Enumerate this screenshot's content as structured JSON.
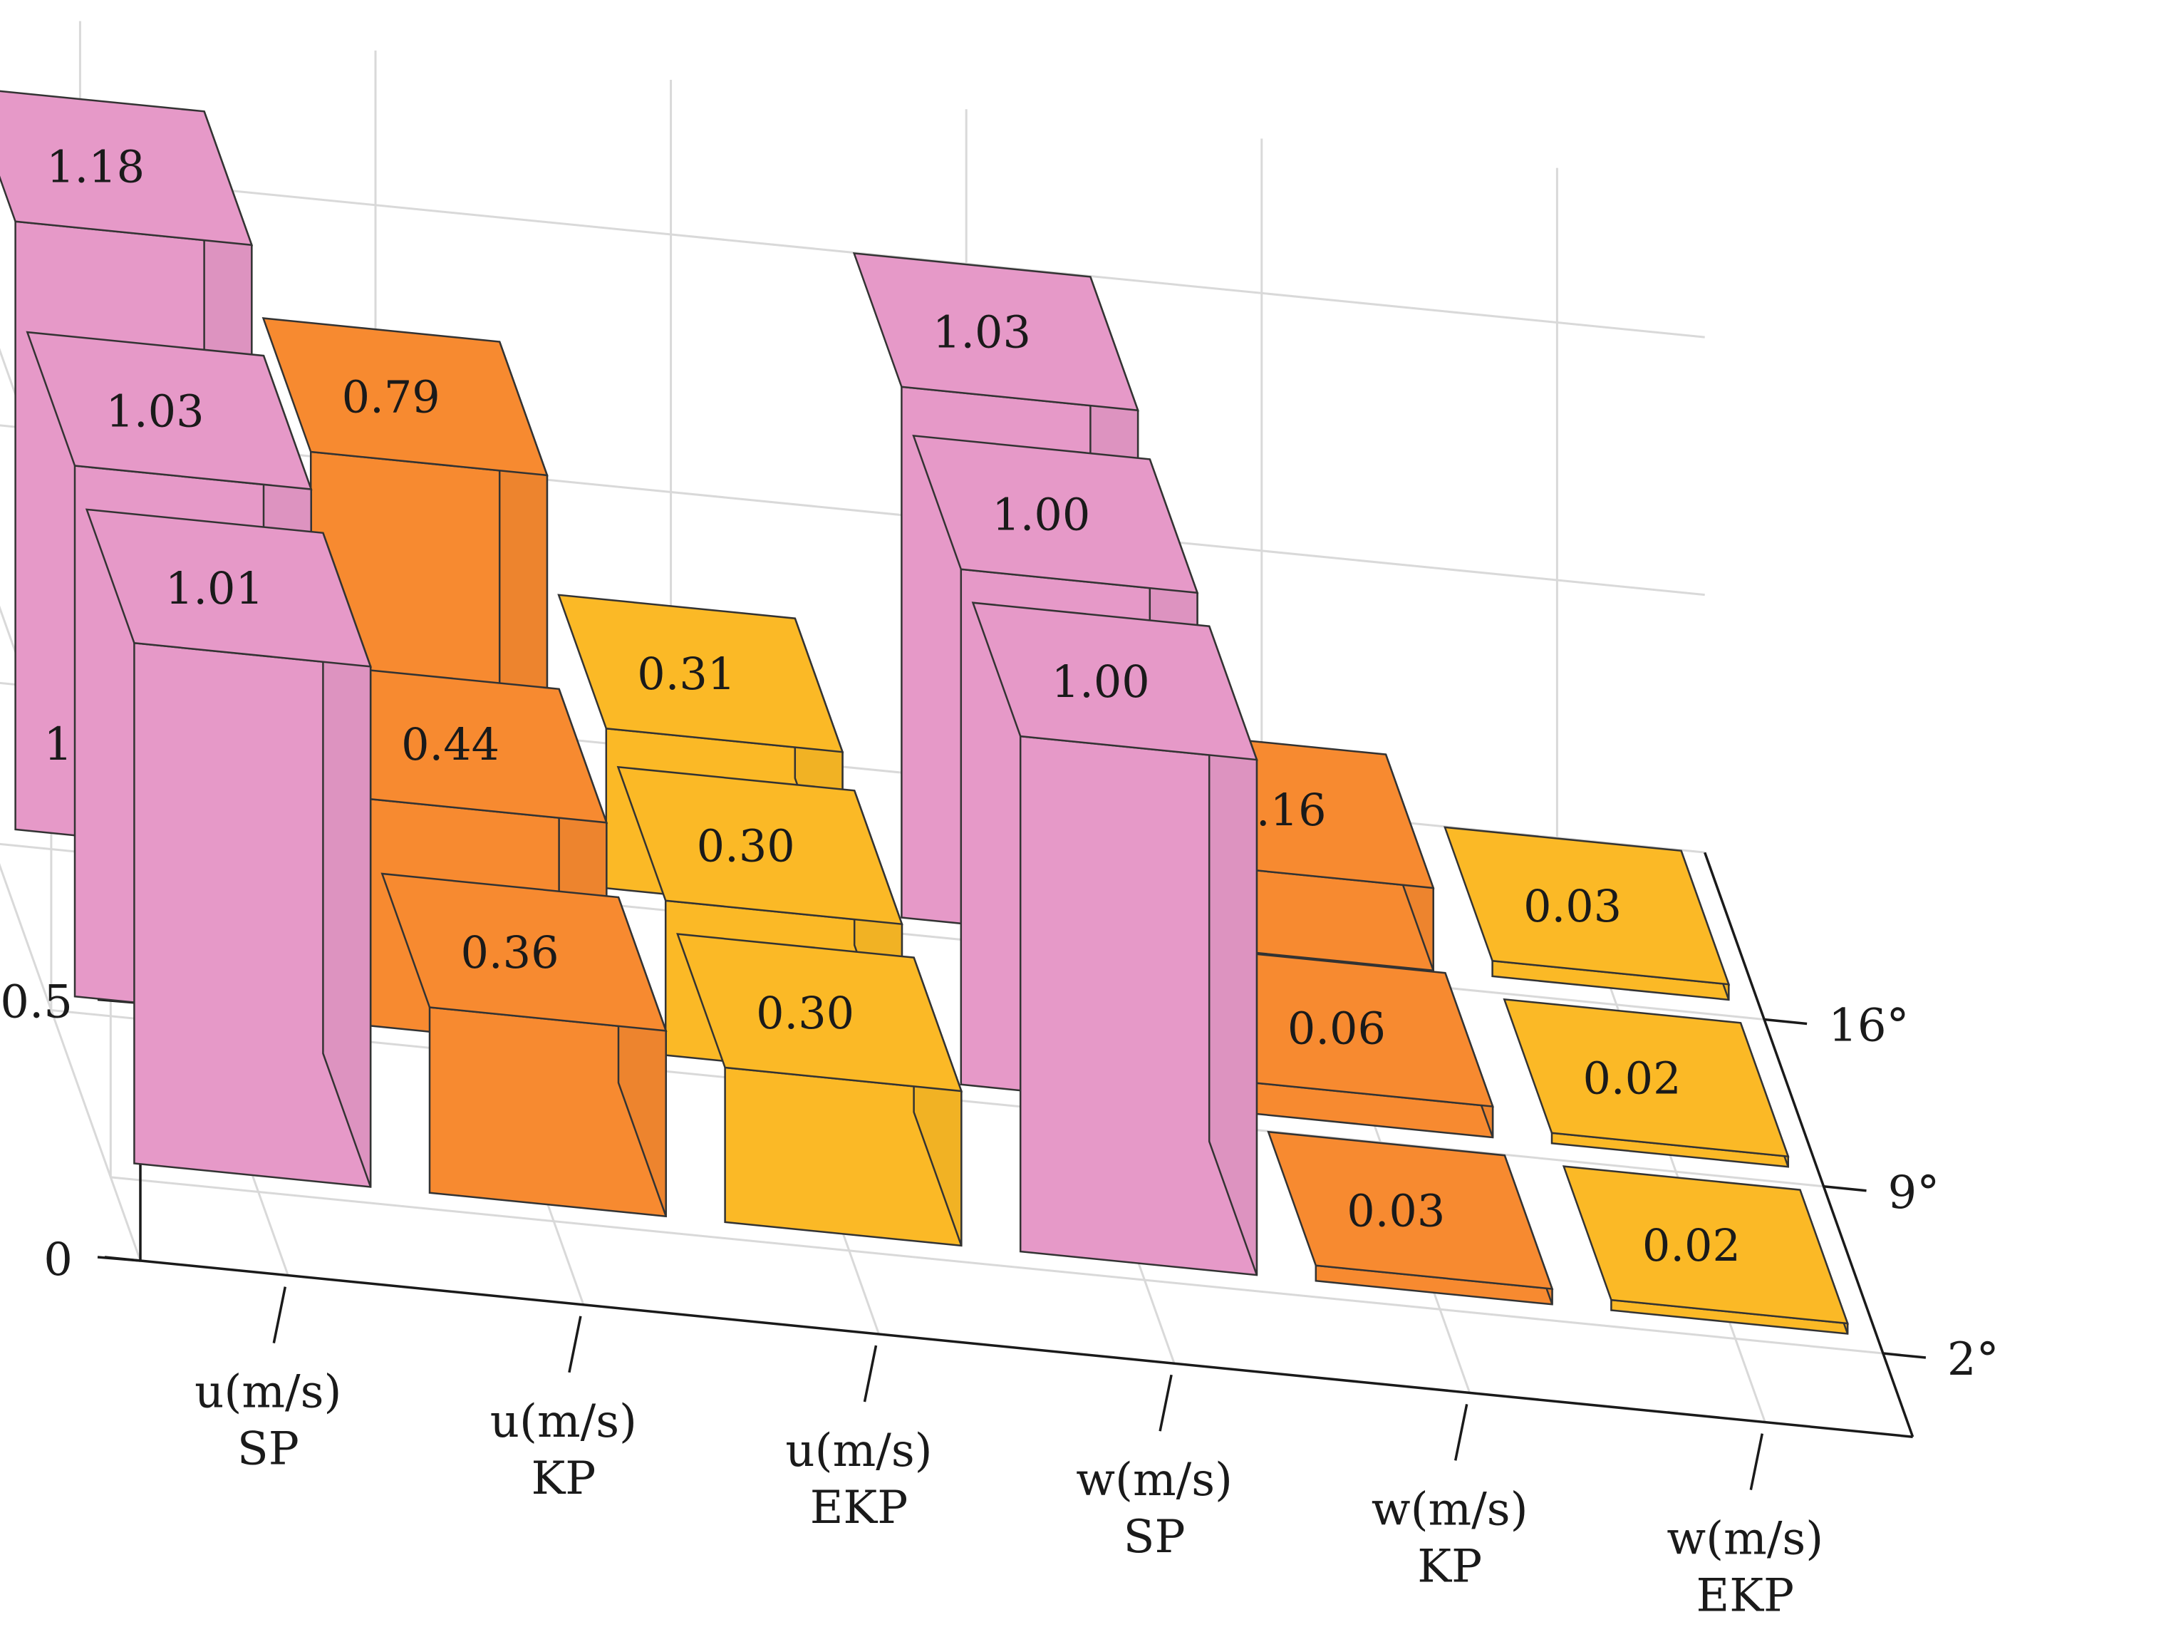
{
  "chart_data": {
    "type": "bar3d",
    "categories": [
      {
        "line1": "u(m/s)",
        "line2": "SP"
      },
      {
        "line1": "u(m/s)",
        "line2": "KP"
      },
      {
        "line1": "u(m/s)",
        "line2": "EKP"
      },
      {
        "line1": "w(m/s)",
        "line2": "SP"
      },
      {
        "line1": "w(m/s)",
        "line2": "KP"
      },
      {
        "line1": "w(m/s)",
        "line2": "EKP"
      }
    ],
    "depth_categories": [
      "2°",
      "9°",
      "16°"
    ],
    "values": [
      [
        1.01,
        1.03,
        1.18
      ],
      [
        0.36,
        0.44,
        0.79
      ],
      [
        0.3,
        0.3,
        0.31
      ],
      [
        1.0,
        1.0,
        1.03
      ],
      [
        0.03,
        0.06,
        0.16
      ],
      [
        0.02,
        0.02,
        0.03
      ]
    ],
    "value_labels": [
      [
        "1.01",
        "1.03",
        "1.18"
      ],
      [
        "0.36",
        "0.44",
        "0.79"
      ],
      [
        "0.30",
        "0.30",
        "0.31"
      ],
      [
        "1.00",
        "1.00",
        "1.03"
      ],
      [
        "0.03",
        "0.06",
        "0.16"
      ],
      [
        "0.02",
        "0.02",
        "0.03"
      ]
    ],
    "z_ticks": [
      {
        "value": 0,
        "label": "0"
      },
      {
        "value": 0.5,
        "label": "0.5"
      },
      {
        "value": 1,
        "label": "1"
      }
    ],
    "zlim": [
      0,
      1.3
    ],
    "colors": {
      "SP": "#e699c8",
      "KP": "#f78a30",
      "EKP": "#fbb926",
      "edge": "#333333",
      "grid": "#d9d9d9",
      "axis": "#1a1a1a"
    },
    "grid": true
  }
}
